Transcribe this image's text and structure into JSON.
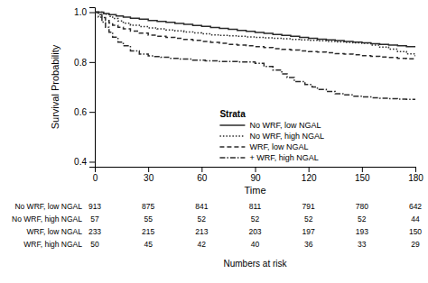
{
  "chart_data": {
    "type": "step",
    "xlabel": "Time",
    "ylabel": "Survival Probability",
    "xlim": [
      0,
      180
    ],
    "ylim": [
      0.38,
      1.02
    ],
    "xticks": [
      0,
      30,
      60,
      90,
      120,
      150,
      180
    ],
    "yticks": [
      0.4,
      0.6,
      0.8,
      {
        "value": 1.0,
        "label": "1.0"
      }
    ],
    "grid": false,
    "legend": "bottom",
    "legend_title": "Strata",
    "series": [
      {
        "name": "No WRF, low NGAL",
        "color": "#2b2b2b",
        "line_style": "solid",
        "x": [
          0,
          2,
          5,
          8,
          12,
          16,
          20,
          25,
          30,
          35,
          40,
          45,
          50,
          55,
          60,
          65,
          70,
          75,
          80,
          85,
          90,
          95,
          100,
          105,
          110,
          115,
          120,
          125,
          130,
          135,
          140,
          145,
          150,
          155,
          160,
          165,
          170,
          175,
          180
        ],
        "values": [
          1.0,
          1.0,
          0.995,
          0.99,
          0.985,
          0.98,
          0.976,
          0.972,
          0.967,
          0.963,
          0.959,
          0.955,
          0.951,
          0.947,
          0.943,
          0.939,
          0.935,
          0.931,
          0.927,
          0.923,
          0.919,
          0.915,
          0.911,
          0.907,
          0.903,
          0.899,
          0.895,
          0.892,
          0.889,
          0.886,
          0.883,
          0.88,
          0.877,
          0.874,
          0.871,
          0.868,
          0.865,
          0.862,
          0.86
        ]
      },
      {
        "name": "No WRF, high NGAL",
        "color": "#2b2b2b",
        "line_style": "dotted",
        "x": [
          0,
          2,
          5,
          8,
          10,
          13,
          16,
          20,
          25,
          30,
          35,
          40,
          45,
          50,
          55,
          60,
          65,
          70,
          75,
          80,
          85,
          90,
          95,
          100,
          105,
          110,
          115,
          120,
          125,
          130,
          135,
          140,
          145,
          150,
          155,
          160,
          165,
          170,
          175,
          180
        ],
        "values": [
          1.0,
          1.0,
          0.992,
          0.983,
          0.975,
          0.965,
          0.956,
          0.948,
          0.942,
          0.937,
          0.933,
          0.929,
          0.925,
          0.921,
          0.917,
          0.913,
          0.909,
          0.907,
          0.905,
          0.903,
          0.901,
          0.899,
          0.897,
          0.895,
          0.893,
          0.891,
          0.889,
          0.887,
          0.885,
          0.883,
          0.881,
          0.879,
          0.877,
          0.875,
          0.868,
          0.86,
          0.852,
          0.842,
          0.833,
          0.823
        ]
      },
      {
        "name": "WRF, low NGAL",
        "color": "#2b2b2b",
        "line_style": "dashed",
        "x": [
          0,
          2,
          4,
          6,
          8,
          10,
          13,
          16,
          20,
          25,
          30,
          35,
          40,
          45,
          50,
          55,
          60,
          65,
          70,
          75,
          80,
          85,
          90,
          95,
          100,
          105,
          110,
          115,
          120,
          125,
          130,
          135,
          140,
          145,
          150,
          155,
          160,
          165,
          170,
          175,
          180
        ],
        "values": [
          1.0,
          0.99,
          0.978,
          0.967,
          0.957,
          0.948,
          0.94,
          0.933,
          0.924,
          0.916,
          0.908,
          0.903,
          0.899,
          0.895,
          0.891,
          0.887,
          0.883,
          0.879,
          0.875,
          0.871,
          0.868,
          0.865,
          0.862,
          0.858,
          0.854,
          0.851,
          0.848,
          0.845,
          0.842,
          0.84,
          0.837,
          0.834,
          0.832,
          0.829,
          0.826,
          0.823,
          0.82,
          0.818,
          0.815,
          0.813,
          0.811
        ]
      },
      {
        "name": "+ WRF, high NGAL",
        "color": "#2b2b2b",
        "line_style": "dashdot",
        "x": [
          0,
          2,
          4,
          6,
          8,
          10,
          13,
          16,
          20,
          25,
          30,
          33,
          37,
          42,
          48,
          55,
          62,
          70,
          80,
          90,
          95,
          100,
          105,
          108,
          112,
          118,
          122,
          125,
          130,
          135,
          140,
          145,
          150,
          155,
          160,
          165,
          170,
          175,
          180
        ],
        "values": [
          1.0,
          0.98,
          0.96,
          0.94,
          0.92,
          0.9,
          0.88,
          0.865,
          0.845,
          0.832,
          0.825,
          0.822,
          0.819,
          0.815,
          0.812,
          0.808,
          0.805,
          0.802,
          0.8,
          0.795,
          0.782,
          0.768,
          0.752,
          0.738,
          0.722,
          0.71,
          0.7,
          0.69,
          0.682,
          0.673,
          0.668,
          0.663,
          0.66,
          0.657,
          0.655,
          0.653,
          0.651,
          0.65,
          0.649
        ]
      }
    ],
    "risk_table": {
      "title": "Numbers at risk",
      "labels": [
        "No WRF, low NGAL",
        "No WRF, high NGAL",
        "WRF, low NGAL",
        "WRF, high NGAL"
      ],
      "times": [
        0,
        30,
        60,
        90,
        120,
        150,
        180
      ],
      "values": [
        [
          913,
          875,
          841,
          811,
          791,
          780,
          642
        ],
        [
          57,
          55,
          52,
          52,
          52,
          52,
          44
        ],
        [
          233,
          215,
          213,
          203,
          197,
          193,
          150
        ],
        [
          50,
          45,
          42,
          40,
          36,
          33,
          29
        ]
      ]
    }
  }
}
